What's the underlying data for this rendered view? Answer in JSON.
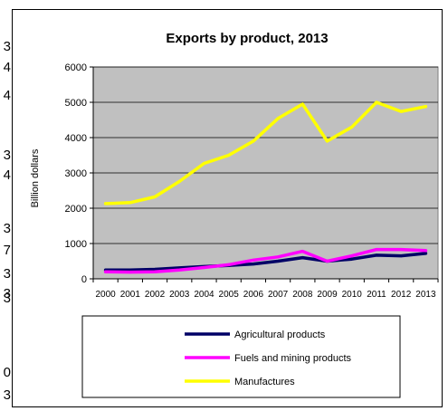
{
  "cut_off_column": {
    "glyphs": [
      "3",
      "4",
      "4",
      "3",
      "4",
      "3",
      "7",
      "3",
      "3",
      "3",
      "0",
      "3"
    ]
  },
  "chart_data": {
    "type": "line",
    "title": "Exports by product, 2013",
    "xlabel": "",
    "ylabel": "Billion dollars",
    "ylim": [
      0,
      6000
    ],
    "yticks": [
      0,
      1000,
      2000,
      3000,
      4000,
      5000,
      6000
    ],
    "categories": [
      "2000",
      "2001",
      "2002",
      "2003",
      "2004",
      "2005",
      "2006",
      "2007",
      "2008",
      "2009",
      "2010",
      "2011",
      "2012",
      "2013"
    ],
    "grid": true,
    "plot_background": "#c0c0c0",
    "legend_placement": "bottom",
    "series": [
      {
        "name": "Agricultural products",
        "color": "#000066",
        "values": [
          250,
          250,
          270,
          310,
          350,
          380,
          420,
          500,
          600,
          500,
          560,
          670,
          650,
          720
        ]
      },
      {
        "name": "Fuels and mining products",
        "color": "#ff00ff",
        "values": [
          200,
          190,
          200,
          250,
          320,
          400,
          530,
          620,
          780,
          500,
          650,
          830,
          830,
          800
        ]
      },
      {
        "name": "Manufactures",
        "color": "#ffff00",
        "values": [
          2130,
          2160,
          2320,
          2760,
          3270,
          3500,
          3900,
          4540,
          4950,
          3900,
          4300,
          5000,
          4740,
          4880
        ]
      }
    ]
  }
}
